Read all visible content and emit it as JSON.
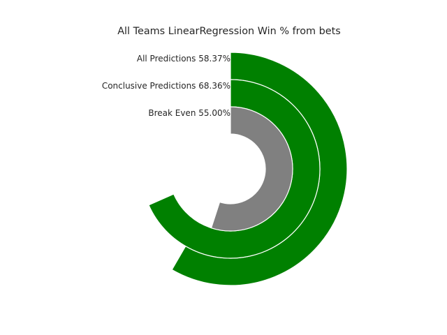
{
  "chart_data": {
    "type": "radial-bar",
    "title": "All Teams LinearRegression Win % from bets",
    "series": [
      {
        "label": "All Predictions 58.37%",
        "value": 58.37,
        "color": "#008000"
      },
      {
        "label": "Conclusive Predictions 68.36%",
        "value": 68.36,
        "color": "#008000"
      },
      {
        "label": "Break Even 55.00%",
        "value": 55.0,
        "color": "#808080"
      }
    ],
    "max_value": 100,
    "direction": "clockwise",
    "start_angle": "top",
    "grid": false,
    "legend": "none"
  }
}
